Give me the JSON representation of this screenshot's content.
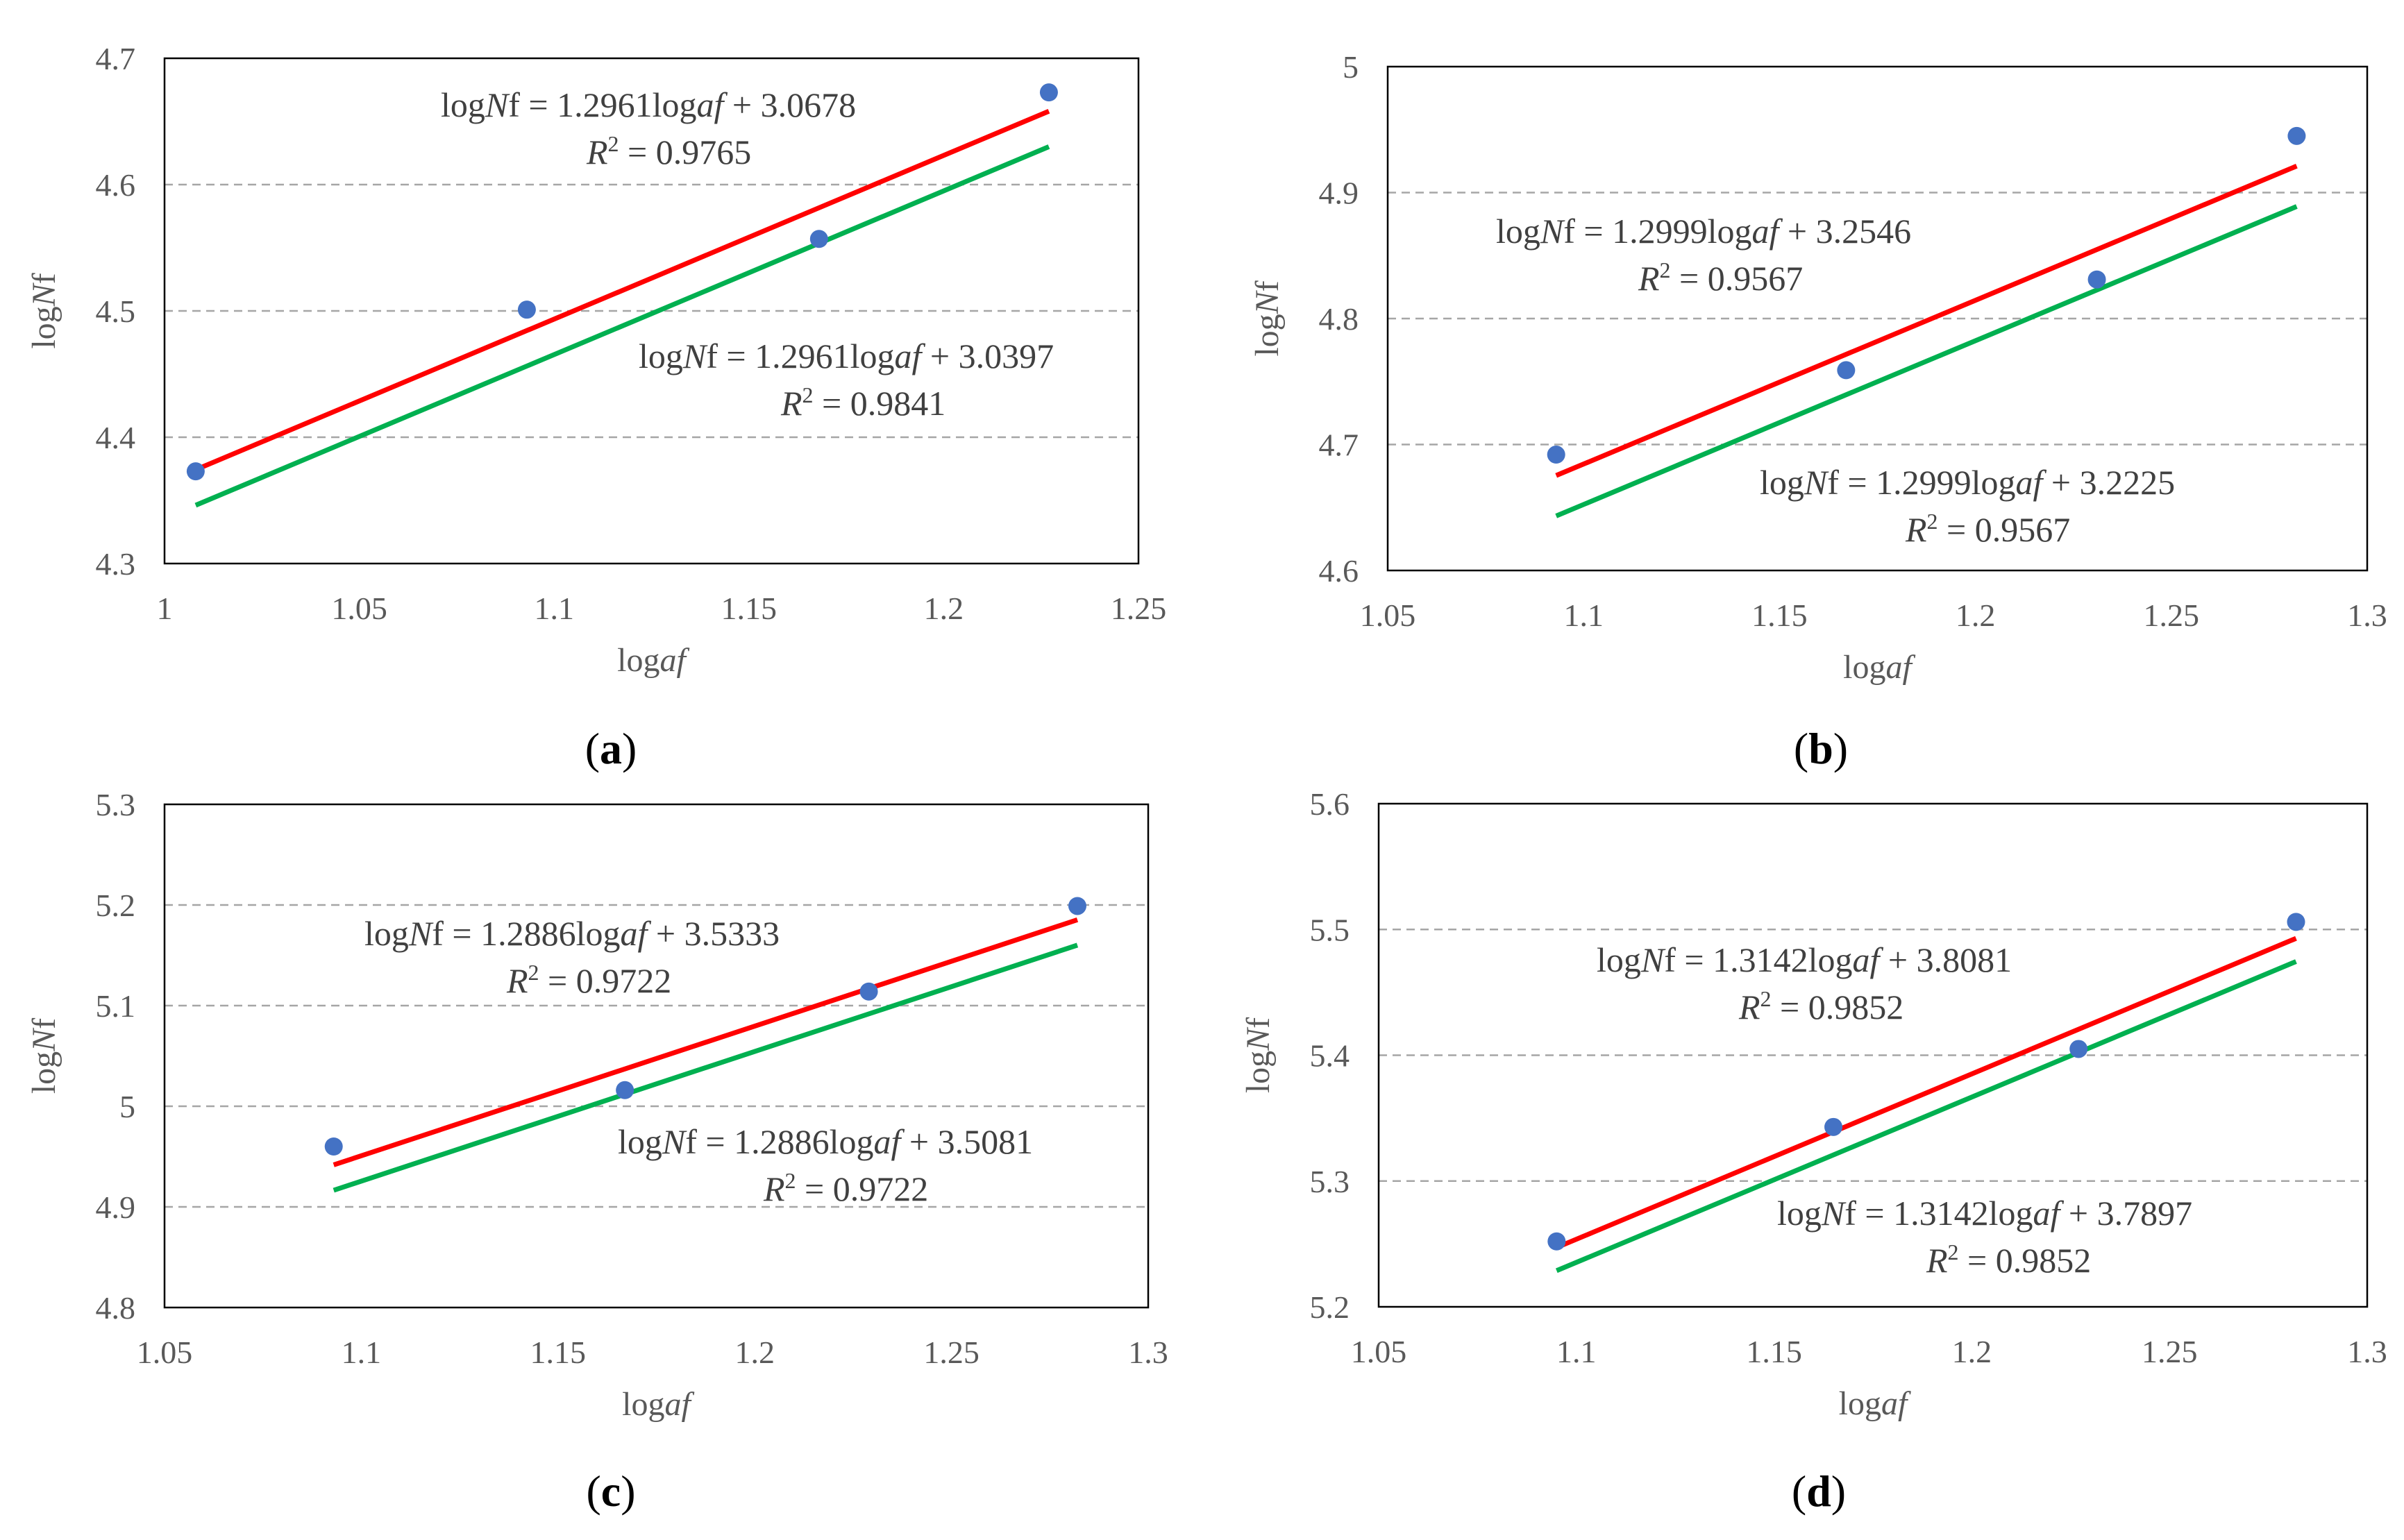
{
  "colors": {
    "red": "#ff0000",
    "green": "#00b050",
    "point": "#4472c4",
    "grid": "#a6a6a6",
    "frame": "#000000"
  },
  "chart_data": [
    {
      "panel": "a",
      "type": "scatter",
      "caption_letter": "a",
      "xlabel_pre": "log",
      "xlabel_it": "af",
      "ylabel_pre": "log",
      "ylabel_it": "N",
      "ylabel_post": "f",
      "xlim": [
        1,
        1.25
      ],
      "ylim": [
        4.3,
        4.7
      ],
      "xticks": [
        "1",
        "1.05",
        "1.1",
        "1.15",
        "1.2",
        "1.25"
      ],
      "yticks": [
        "4.3",
        "4.4",
        "4.5",
        "4.6",
        "4.7"
      ],
      "points": [
        [
          1.008,
          4.373
        ],
        [
          1.093,
          4.501
        ],
        [
          1.168,
          4.557
        ],
        [
          1.227,
          4.673
        ]
      ],
      "series": [
        {
          "name": "red",
          "slope": 1.2961,
          "intercept": 3.0678,
          "x": [
            1.008,
            1.227
          ],
          "eq_text": "logNf = 1.2961logaf + 3.0678",
          "eq_lhs": "log",
          "eq_n": "N",
          "eq_f": "f",
          "eq_mid": " = 1.2961log",
          "eq_af": "af",
          "eq_rhs": " + 3.0678",
          "r2_label": "R",
          "r2_value": " = 0.9765"
        },
        {
          "name": "green",
          "slope": 1.2961,
          "intercept": 3.0397,
          "x": [
            1.008,
            1.227
          ],
          "eq_text": "logNf = 1.2961logaf + 3.0397",
          "eq_lhs": "log",
          "eq_n": "N",
          "eq_f": "f",
          "eq_mid": " = 1.2961log",
          "eq_af": "af",
          "eq_rhs": " + 3.0397",
          "r2_label": "R",
          "r2_value": " = 0.9841"
        }
      ]
    },
    {
      "panel": "b",
      "type": "scatter",
      "caption_letter": "b",
      "xlabel_pre": "log",
      "xlabel_it": "af",
      "ylabel_pre": "log",
      "ylabel_it": "N",
      "ylabel_post": "f",
      "xlim": [
        1.05,
        1.3
      ],
      "ylim": [
        4.6,
        5.0
      ],
      "xticks": [
        "1.05",
        "1.1",
        "1.15",
        "1.2",
        "1.25",
        "1.3"
      ],
      "yticks": [
        "4.6",
        "4.7",
        "4.8",
        "4.9",
        "5"
      ],
      "points": [
        [
          1.093,
          4.692
        ],
        [
          1.167,
          4.759
        ],
        [
          1.231,
          4.831
        ],
        [
          1.282,
          4.945
        ]
      ],
      "series": [
        {
          "name": "red",
          "slope": 1.2999,
          "intercept": 3.2546,
          "x": [
            1.093,
            1.282
          ],
          "eq_text": "logNf = 1.2999logaf + 3.2546",
          "eq_lhs": "log",
          "eq_n": "N",
          "eq_f": "f",
          "eq_mid": " = 1.2999log",
          "eq_af": "af",
          "eq_rhs": " + 3.2546",
          "r2_label": "R",
          "r2_value": " = 0.9567"
        },
        {
          "name": "green",
          "slope": 1.2999,
          "intercept": 3.2225,
          "x": [
            1.093,
            1.282
          ],
          "eq_text": "logNf = 1.2999logaf + 3.2225",
          "eq_lhs": "log",
          "eq_n": "N",
          "eq_f": "f",
          "eq_mid": " = 1.2999log",
          "eq_af": "af",
          "eq_rhs": " + 3.2225",
          "r2_label": "R",
          "r2_value": " = 0.9567"
        }
      ]
    },
    {
      "panel": "c",
      "type": "scatter",
      "caption_letter": "c",
      "xlabel_pre": "log",
      "xlabel_it": "af",
      "ylabel_pre": "log",
      "ylabel_it": "N",
      "ylabel_post": "f",
      "xlim": [
        1.05,
        1.3
      ],
      "ylim": [
        4.8,
        5.3
      ],
      "xticks": [
        "1.05",
        "1.1",
        "1.15",
        "1.2",
        "1.25",
        "1.3"
      ],
      "yticks": [
        "4.8",
        "4.9",
        "5",
        "5.1",
        "5.2",
        "5.3"
      ],
      "points": [
        [
          1.093,
          4.96
        ],
        [
          1.167,
          5.016
        ],
        [
          1.229,
          5.114
        ],
        [
          1.282,
          5.199
        ]
      ],
      "series": [
        {
          "name": "red",
          "slope": 1.2886,
          "intercept": 3.5333,
          "x": [
            1.093,
            1.282
          ],
          "eq_text": "logNf = 1.2886logaf + 3.5333",
          "eq_lhs": "log",
          "eq_n": "N",
          "eq_f": "f",
          "eq_mid": " = 1.2886log",
          "eq_af": "af",
          "eq_rhs": " + 3.5333",
          "r2_label": "R",
          "r2_value": " = 0.9722"
        },
        {
          "name": "green",
          "slope": 1.2886,
          "intercept": 3.5081,
          "x": [
            1.093,
            1.282
          ],
          "eq_text": "logNf = 1.2886logaf + 3.5081",
          "eq_lhs": "log",
          "eq_n": "N",
          "eq_f": "f",
          "eq_mid": " = 1.2886log",
          "eq_af": "af",
          "eq_rhs": " + 3.5081",
          "r2_label": "R",
          "r2_value": " = 0.9722"
        }
      ]
    },
    {
      "panel": "d",
      "type": "scatter",
      "caption_letter": "d",
      "xlabel_pre": "log",
      "xlabel_it": "af",
      "ylabel_pre": "log",
      "ylabel_it": "N",
      "ylabel_post": "f",
      "xlim": [
        1.05,
        1.3
      ],
      "ylim": [
        5.2,
        5.6
      ],
      "xticks": [
        "1.05",
        "1.1",
        "1.15",
        "1.2",
        "1.25",
        "1.3"
      ],
      "yticks": [
        "5.2",
        "5.3",
        "5.4",
        "5.5",
        "5.6"
      ],
      "points": [
        [
          1.095,
          5.252
        ],
        [
          1.165,
          5.343
        ],
        [
          1.227,
          5.405
        ],
        [
          1.282,
          5.506
        ]
      ],
      "series": [
        {
          "name": "red",
          "slope": 1.3142,
          "intercept": 3.8081,
          "x": [
            1.095,
            1.282
          ],
          "eq_text": "logNf = 1.3142logaf + 3.8081",
          "eq_lhs": "log",
          "eq_n": "N",
          "eq_f": "f",
          "eq_mid": " = 1.3142log",
          "eq_af": "af",
          "eq_rhs": " + 3.8081",
          "r2_label": "R",
          "r2_value": " = 0.9852"
        },
        {
          "name": "green",
          "slope": 1.3142,
          "intercept": 3.7897,
          "x": [
            1.095,
            1.282
          ],
          "eq_text": "logNf = 1.3142logaf + 3.7897",
          "eq_lhs": "log",
          "eq_n": "N",
          "eq_f": "f",
          "eq_mid": " = 1.3142log",
          "eq_af": "af",
          "eq_rhs": " + 3.7897",
          "r2_label": "R",
          "r2_value": " = 0.9852"
        }
      ]
    }
  ]
}
